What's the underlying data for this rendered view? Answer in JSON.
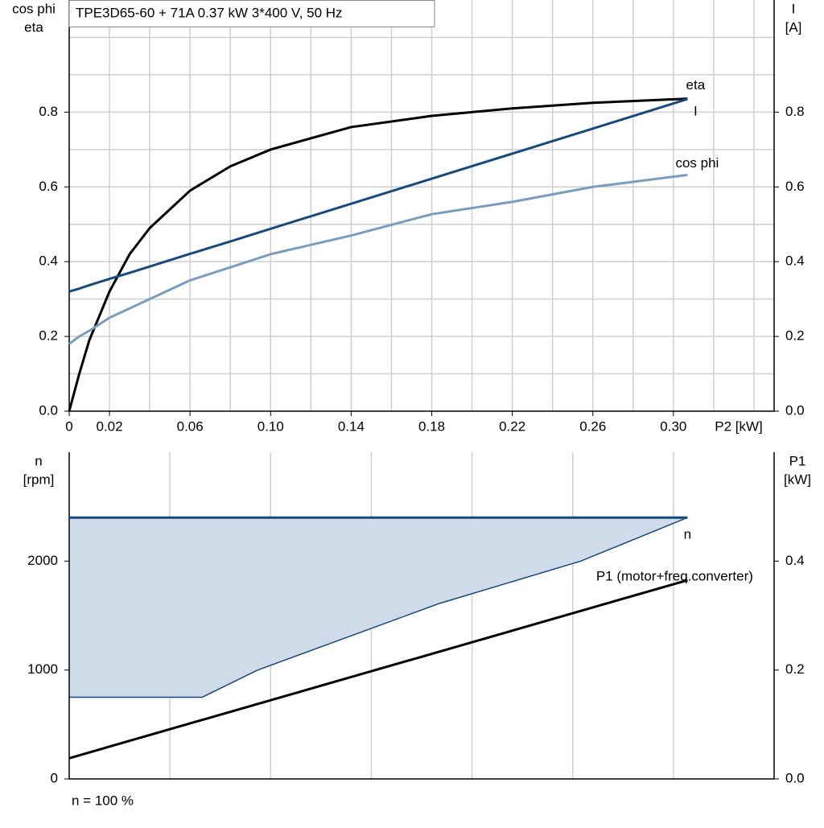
{
  "chart_data": [
    {
      "type": "line",
      "title": "TPE3D65-60 + 71A   0.37 kW   3*400 V, 50 Hz",
      "ylabel": [
        "cos phi",
        "eta"
      ],
      "y2label": [
        "I",
        "[A]"
      ],
      "xlabel": "P2 [kW]",
      "x": [
        0,
        0.005,
        0.01,
        0.02,
        0.03,
        0.04,
        0.06,
        0.08,
        0.1,
        0.14,
        0.18,
        0.22,
        0.26,
        0.307
      ],
      "series": [
        {
          "name": "eta",
          "color": "#000000",
          "values": [
            0,
            0.1,
            0.19,
            0.32,
            0.42,
            0.49,
            0.59,
            0.655,
            0.7,
            0.76,
            0.79,
            0.81,
            0.825,
            0.836
          ]
        },
        {
          "name": "I",
          "color": "#174a7c",
          "axis": "y2",
          "values": [
            0.32,
            0.328,
            0.337,
            0.354,
            0.37,
            0.387,
            0.421,
            0.454,
            0.488,
            0.555,
            0.622,
            0.689,
            0.756,
            0.835
          ]
        },
        {
          "name": "cos phi",
          "color": "#7b9dbd",
          "values": [
            0.18,
            0.2,
            0.215,
            0.25,
            0.275,
            0.3,
            0.35,
            0.385,
            0.42,
            0.47,
            0.527,
            0.56,
            0.6,
            0.632
          ]
        }
      ],
      "xlim": [
        0,
        0.35
      ],
      "ylim": [
        0,
        1.1
      ],
      "y2lim": [
        0,
        1.1
      ],
      "xticks": [
        0,
        0.02,
        0.06,
        {
          "value": 0.1,
          "label": "0.10"
        },
        0.14,
        0.18,
        0.22,
        0.26,
        {
          "value": 0.3,
          "label": "0.30"
        }
      ],
      "yticks": [
        {
          "value": 0,
          "label": "0.0"
        },
        0.2,
        0.4,
        0.6,
        0.8
      ],
      "y2ticks": [
        {
          "value": 0,
          "label": "0.0"
        },
        0.2,
        0.4,
        0.6,
        0.8
      ],
      "xgrid": [
        0.02,
        0.04,
        0.06,
        0.08,
        0.1,
        0.12,
        0.14,
        0.16,
        0.18,
        0.2,
        0.22,
        0.24,
        0.26,
        0.28,
        0.3,
        0.32,
        0.34
      ],
      "ygrid": [
        0.1,
        0.2,
        0.3,
        0.4,
        0.5,
        0.6,
        0.7,
        0.8,
        0.9,
        1.0
      ]
    },
    {
      "type": "line",
      "ylabel": [
        "n",
        "[rpm]"
      ],
      "y2label": [
        "P1",
        "[kW]"
      ],
      "note": "n = 100 %",
      "x": [
        0,
        0.307
      ],
      "series": [
        {
          "name": "n",
          "color": "#174a7c",
          "values": [
            2400,
            2400
          ]
        },
        {
          "name": "P1 (motor+freq.converter)",
          "color": "#000000",
          "axis": "y2",
          "values": [
            0.038,
            0.365
          ]
        }
      ],
      "band": {
        "x": [
          0,
          0.066,
          0.0936,
          0.1836,
          0.254,
          0.307
        ],
        "values": [
          750,
          750,
          1000,
          1610,
          2000,
          2400
        ],
        "color": "#cfdbe8"
      },
      "xlim": [
        0,
        0.35
      ],
      "ylim": [
        0,
        3000
      ],
      "y2lim": [
        0,
        0.6
      ],
      "yticks": [
        0,
        1000,
        2000
      ],
      "y2ticks": [
        {
          "value": 0,
          "label": "0.0"
        },
        0.2,
        0.4
      ],
      "xgrid": [
        0.05,
        0.1,
        0.15,
        0.2,
        0.25,
        0.3
      ]
    }
  ]
}
